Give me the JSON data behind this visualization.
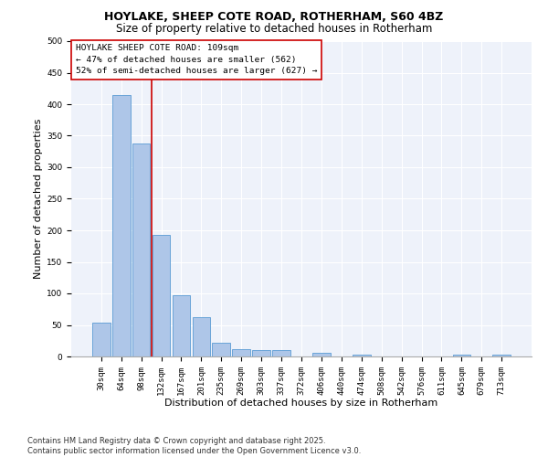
{
  "title_line1": "HOYLAKE, SHEEP COTE ROAD, ROTHERHAM, S60 4BZ",
  "title_line2": "Size of property relative to detached houses in Rotherham",
  "xlabel": "Distribution of detached houses by size in Rotherham",
  "ylabel": "Number of detached properties",
  "categories": [
    "30sqm",
    "64sqm",
    "98sqm",
    "132sqm",
    "167sqm",
    "201sqm",
    "235sqm",
    "269sqm",
    "303sqm",
    "337sqm",
    "372sqm",
    "406sqm",
    "440sqm",
    "474sqm",
    "508sqm",
    "542sqm",
    "576sqm",
    "611sqm",
    "645sqm",
    "679sqm",
    "713sqm"
  ],
  "values": [
    53,
    415,
    338,
    193,
    97,
    63,
    22,
    12,
    10,
    10,
    0,
    6,
    0,
    3,
    0,
    0,
    0,
    0,
    3,
    0,
    3
  ],
  "bar_color": "#aec6e8",
  "bar_edge_color": "#5a9bd4",
  "vline_x_index": 2.5,
  "vline_color": "#cc0000",
  "annotation_box_text": "HOYLAKE SHEEP COTE ROAD: 109sqm\n← 47% of detached houses are smaller (562)\n52% of semi-detached houses are larger (627) →",
  "ylim": [
    0,
    500
  ],
  "yticks": [
    0,
    50,
    100,
    150,
    200,
    250,
    300,
    350,
    400,
    450,
    500
  ],
  "bg_color": "#eef2fa",
  "footer_text": "Contains HM Land Registry data © Crown copyright and database right 2025.\nContains public sector information licensed under the Open Government Licence v3.0.",
  "title_fontsize": 9,
  "subtitle_fontsize": 8.5,
  "axis_label_fontsize": 8,
  "tick_fontsize": 6.5,
  "annotation_fontsize": 6.8,
  "footer_fontsize": 6
}
